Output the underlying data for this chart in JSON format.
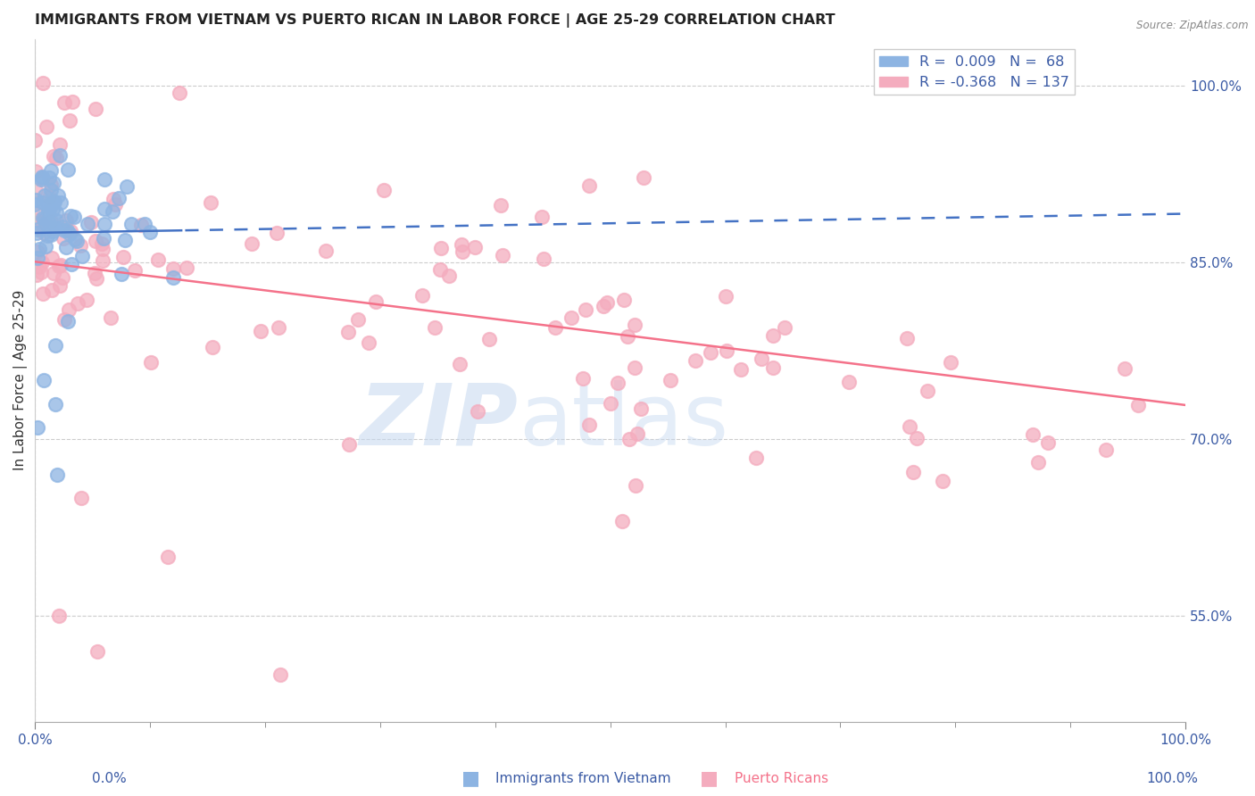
{
  "title": "IMMIGRANTS FROM VIETNAM VS PUERTO RICAN IN LABOR FORCE | AGE 25-29 CORRELATION CHART",
  "source_text": "Source: ZipAtlas.com",
  "ylabel": "In Labor Force | Age 25-29",
  "xlim": [
    0.0,
    1.0
  ],
  "ylim": [
    0.46,
    1.04
  ],
  "right_yticks": [
    0.55,
    0.7,
    0.85,
    1.0
  ],
  "right_ytick_labels": [
    "55.0%",
    "70.0%",
    "85.0%",
    "100.0%"
  ],
  "blue_R": 0.009,
  "blue_N": 68,
  "pink_R": -0.368,
  "pink_N": 137,
  "blue_dot_color": "#8DB4E2",
  "pink_dot_color": "#F4ACBE",
  "blue_line_color": "#4472C4",
  "pink_line_color": "#F4728A",
  "legend_text_color": "#3B5BA5",
  "axis_text_color": "#3B5BA5",
  "background_color": "#FFFFFF",
  "watermark_zip_color": "#C5D8F0",
  "watermark_atlas_color": "#C5D8F0",
  "grid_color": "#CCCCCC",
  "title_color": "#222222"
}
